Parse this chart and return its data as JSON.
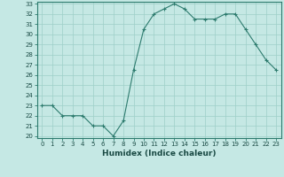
{
  "x": [
    0,
    1,
    2,
    3,
    4,
    5,
    6,
    7,
    8,
    9,
    10,
    11,
    12,
    13,
    14,
    15,
    16,
    17,
    18,
    19,
    20,
    21,
    22,
    23
  ],
  "y": [
    23,
    23,
    22,
    22,
    22,
    21,
    21,
    20,
    21.5,
    26.5,
    30.5,
    32,
    32.5,
    33,
    32.5,
    31.5,
    31.5,
    31.5,
    32,
    32,
    30.5,
    29,
    27.5,
    26.5
  ],
  "xlabel": "Humidex (Indice chaleur)",
  "ylim": [
    20,
    33
  ],
  "xlim": [
    -0.5,
    23.5
  ],
  "yticks": [
    20,
    21,
    22,
    23,
    24,
    25,
    26,
    27,
    28,
    29,
    30,
    31,
    32,
    33
  ],
  "xticks": [
    0,
    1,
    2,
    3,
    4,
    5,
    6,
    7,
    8,
    9,
    10,
    11,
    12,
    13,
    14,
    15,
    16,
    17,
    18,
    19,
    20,
    21,
    22,
    23
  ],
  "line_color": "#2d7b6e",
  "bg_color": "#c5e8e4",
  "grid_color": "#9ecfc8"
}
